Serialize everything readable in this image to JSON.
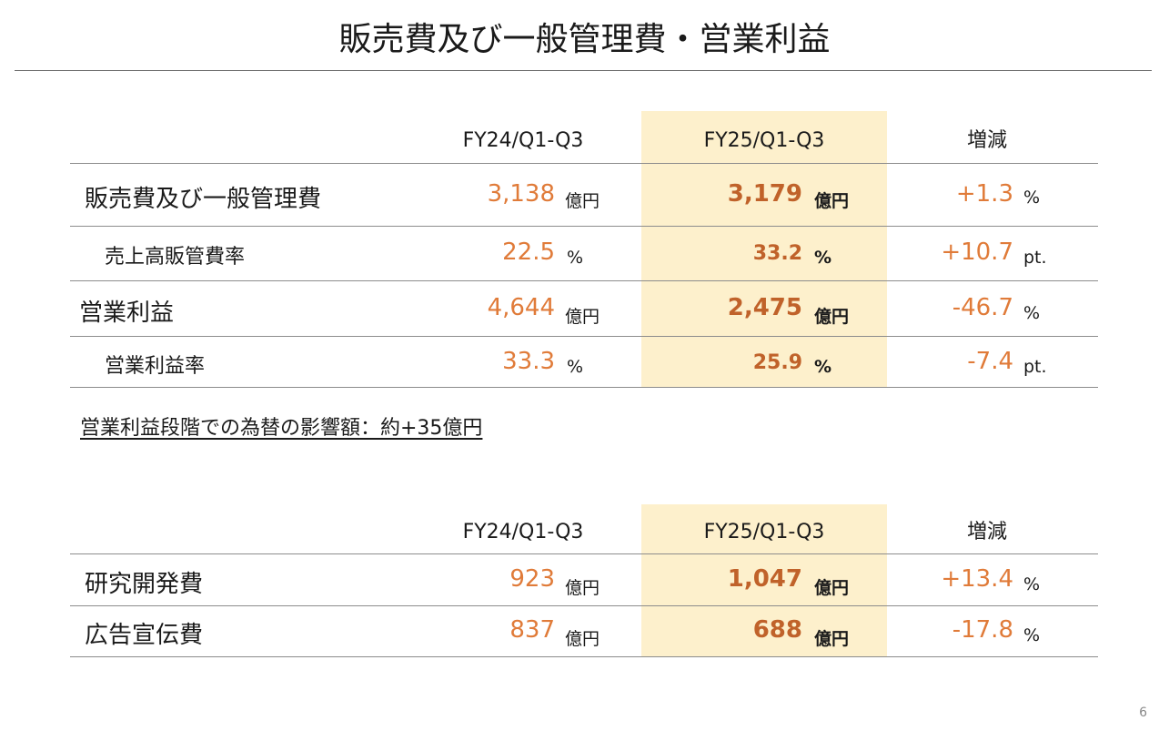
{
  "title": "販売費及び一般管理費・営業利益",
  "table1": {
    "headers": {
      "prev": "FY24/Q1-Q3",
      "curr": "FY25/Q1-Q3",
      "change": "増減"
    },
    "rows": [
      {
        "label": "販売費及び一般管理費",
        "prev": "3,138",
        "prev_unit": "億円",
        "curr": "3,179",
        "curr_unit": "億円",
        "change": "+1.3",
        "change_unit": "%"
      },
      {
        "label": "売上高販管費率",
        "prev": "22.5",
        "prev_unit": "%",
        "curr": "33.2",
        "curr_unit": "%",
        "change": "+10.7",
        "change_unit": "pt."
      },
      {
        "label": "営業利益",
        "prev": "4,644",
        "prev_unit": "億円",
        "curr": "2,475",
        "curr_unit": "億円",
        "change": "-46.7",
        "change_unit": "%"
      },
      {
        "label": "営業利益率",
        "prev": "33.3",
        "prev_unit": "%",
        "curr": "25.9",
        "curr_unit": "%",
        "change": "-7.4",
        "change_unit": "pt."
      }
    ]
  },
  "note": "営業利益段階での為替の影響額：約+35億円",
  "table2": {
    "headers": {
      "prev": "FY24/Q1-Q3",
      "curr": "FY25/Q1-Q3",
      "change": "増減"
    },
    "rows": [
      {
        "label": "研究開発費",
        "prev": "923",
        "prev_unit": "億円",
        "curr": "1,047",
        "curr_unit": "億円",
        "change": "+13.4",
        "change_unit": "%"
      },
      {
        "label": "広告宣伝費",
        "prev": "837",
        "prev_unit": "億円",
        "curr": "688",
        "curr_unit": "億円",
        "change": "-17.8",
        "change_unit": "%"
      }
    ]
  },
  "page_number": "6",
  "colors": {
    "accent": "#e07b39",
    "accent_bold": "#c0622a",
    "highlight": "#fdf0cc"
  }
}
